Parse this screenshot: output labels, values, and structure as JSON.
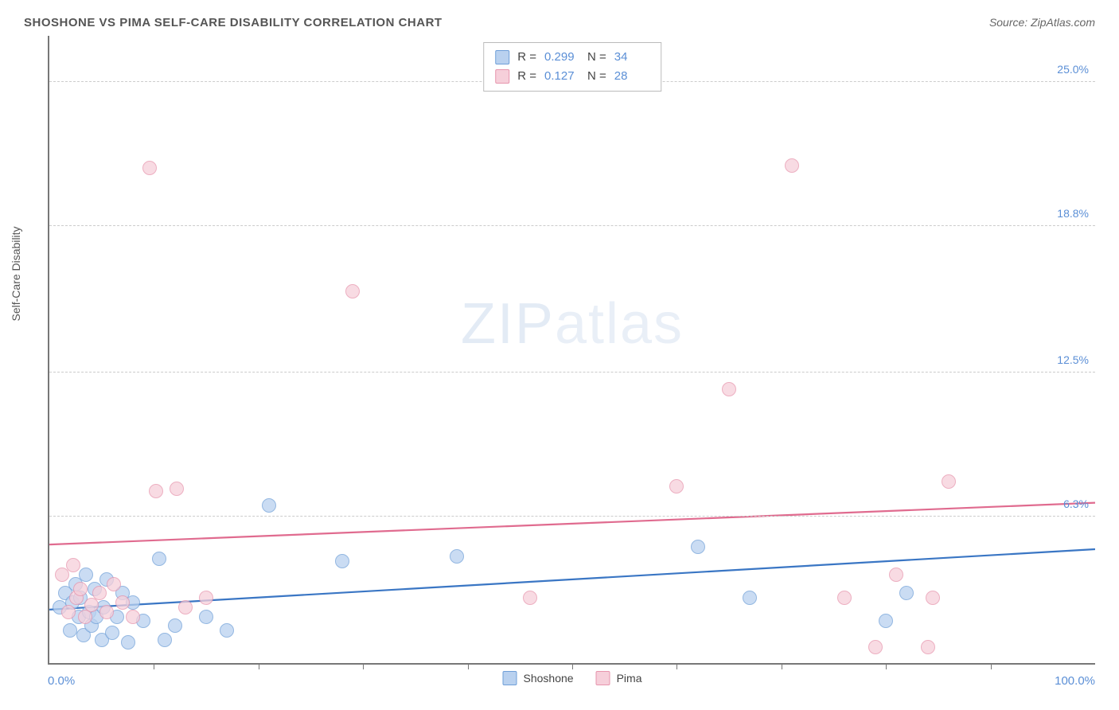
{
  "title": "SHOSHONE VS PIMA SELF-CARE DISABILITY CORRELATION CHART",
  "source_prefix": "Source: ",
  "source_name": "ZipAtlas.com",
  "ylabel": "Self-Care Disability",
  "watermark_bold": "ZIP",
  "watermark_light": "atlas",
  "xaxis": {
    "min_label": "0.0%",
    "max_label": "100.0%",
    "min": 0,
    "max": 100
  },
  "yaxis": {
    "min": 0,
    "max": 27,
    "ticks": [
      {
        "v": 6.3,
        "label": "6.3%"
      },
      {
        "v": 12.5,
        "label": "12.5%"
      },
      {
        "v": 18.8,
        "label": "18.8%"
      },
      {
        "v": 25.0,
        "label": "25.0%"
      }
    ]
  },
  "xticks_minor": [
    10,
    20,
    30,
    40,
    50,
    60,
    70,
    80,
    90
  ],
  "series": [
    {
      "name": "Shoshone",
      "fill": "#b9d1ef",
      "stroke": "#6f9fd8",
      "line_color": "#3a76c4",
      "stats": {
        "R": "0.299",
        "N": "34"
      },
      "trend": {
        "y_at_x0": 2.3,
        "y_at_x100": 4.9
      },
      "points": [
        [
          1.0,
          2.4
        ],
        [
          1.5,
          3.0
        ],
        [
          2.0,
          1.4
        ],
        [
          2.2,
          2.6
        ],
        [
          2.5,
          3.4
        ],
        [
          2.8,
          2.0
        ],
        [
          3.0,
          2.8
        ],
        [
          3.3,
          1.2
        ],
        [
          3.5,
          3.8
        ],
        [
          3.8,
          2.2
        ],
        [
          4.0,
          1.6
        ],
        [
          4.3,
          3.2
        ],
        [
          4.5,
          2.0
        ],
        [
          5.0,
          1.0
        ],
        [
          5.2,
          2.4
        ],
        [
          5.5,
          3.6
        ],
        [
          6.0,
          1.3
        ],
        [
          6.5,
          2.0
        ],
        [
          7.0,
          3.0
        ],
        [
          7.5,
          0.9
        ],
        [
          8.0,
          2.6
        ],
        [
          9.0,
          1.8
        ],
        [
          10.5,
          4.5
        ],
        [
          11.0,
          1.0
        ],
        [
          12.0,
          1.6
        ],
        [
          15.0,
          2.0
        ],
        [
          17.0,
          1.4
        ],
        [
          21.0,
          6.8
        ],
        [
          28.0,
          4.4
        ],
        [
          39.0,
          4.6
        ],
        [
          62.0,
          5.0
        ],
        [
          67.0,
          2.8
        ],
        [
          80.0,
          1.8
        ],
        [
          82.0,
          3.0
        ]
      ]
    },
    {
      "name": "Pima",
      "fill": "#f6cfda",
      "stroke": "#e795ad",
      "line_color": "#e06b8f",
      "stats": {
        "R": "0.127",
        "N": "28"
      },
      "trend": {
        "y_at_x0": 5.1,
        "y_at_x100": 6.9
      },
      "points": [
        [
          1.2,
          3.8
        ],
        [
          1.8,
          2.2
        ],
        [
          2.3,
          4.2
        ],
        [
          2.6,
          2.8
        ],
        [
          3.0,
          3.2
        ],
        [
          3.4,
          2.0
        ],
        [
          4.0,
          2.5
        ],
        [
          4.8,
          3.0
        ],
        [
          5.5,
          2.2
        ],
        [
          6.2,
          3.4
        ],
        [
          7.0,
          2.6
        ],
        [
          8.0,
          2.0
        ],
        [
          9.6,
          21.3
        ],
        [
          10.2,
          7.4
        ],
        [
          12.2,
          7.5
        ],
        [
          13.0,
          2.4
        ],
        [
          15.0,
          2.8
        ],
        [
          29.0,
          16.0
        ],
        [
          46.0,
          2.8
        ],
        [
          60.0,
          7.6
        ],
        [
          65.0,
          11.8
        ],
        [
          71.0,
          21.4
        ],
        [
          76.0,
          2.8
        ],
        [
          79.0,
          0.7
        ],
        [
          81.0,
          3.8
        ],
        [
          84.0,
          0.7
        ],
        [
          84.5,
          2.8
        ],
        [
          86.0,
          7.8
        ]
      ]
    }
  ],
  "stats_labels": {
    "R": "R =",
    "N": "N ="
  },
  "marker_radius": 9,
  "marker_opacity": 0.75,
  "line_width": 2.2
}
